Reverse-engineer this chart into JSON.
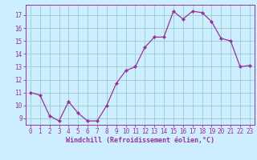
{
  "x": [
    0,
    1,
    2,
    3,
    4,
    5,
    6,
    7,
    8,
    9,
    10,
    11,
    12,
    13,
    14,
    15,
    16,
    17,
    18,
    19,
    20,
    21,
    22,
    23
  ],
  "y": [
    11.0,
    10.8,
    9.2,
    8.8,
    10.3,
    9.4,
    8.8,
    8.8,
    10.0,
    11.7,
    12.7,
    13.0,
    14.5,
    15.3,
    15.3,
    17.3,
    16.7,
    17.3,
    17.2,
    16.5,
    15.2,
    15.0,
    13.0,
    13.1
  ],
  "line_color": "#993399",
  "marker": "D",
  "marker_size": 2.2,
  "bg_color": "#cceeff",
  "grid_color": "#99cccc",
  "xlabel": "Windchill (Refroidissement éolien,°C)",
  "ylim": [
    8.5,
    17.8
  ],
  "xlim": [
    -0.5,
    23.5
  ],
  "yticks": [
    9,
    10,
    11,
    12,
    13,
    14,
    15,
    16,
    17
  ],
  "xticks": [
    0,
    1,
    2,
    3,
    4,
    5,
    6,
    7,
    8,
    9,
    10,
    11,
    12,
    13,
    14,
    15,
    16,
    17,
    18,
    19,
    20,
    21,
    22,
    23
  ],
  "tick_color": "#993399",
  "label_color": "#993399",
  "tick_fontsize": 5.5,
  "xlabel_fontsize": 6.0
}
